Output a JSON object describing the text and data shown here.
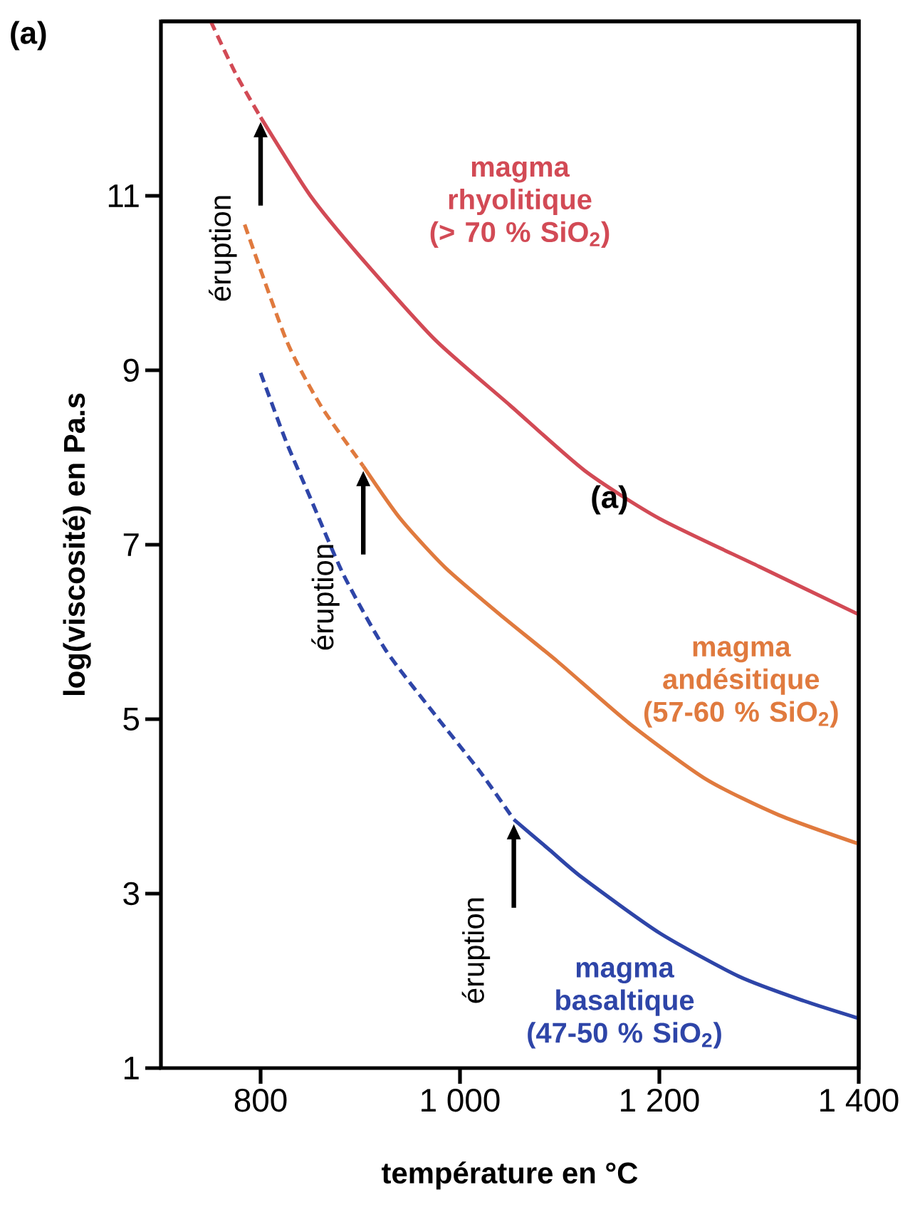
{
  "chart_data": {
    "type": "line",
    "xlabel": "température en °C",
    "ylabel": "log(viscosité) en Pa.s",
    "xlim": [
      700,
      1400
    ],
    "ylim": [
      1,
      13
    ],
    "xticks": [
      800,
      {
        "value": 1000,
        "label": "1 000"
      },
      {
        "value": 1200,
        "label": "1 200"
      },
      {
        "value": 1400,
        "label": "1 400"
      }
    ],
    "yticks": [
      1,
      3,
      5,
      7,
      9,
      11
    ],
    "grid": false,
    "marker": "none",
    "series": [
      {
        "color": "#d24a55",
        "line_style": "dashed",
        "x": [
          750,
          775,
          800
        ],
        "values": [
          13.0,
          12.4,
          11.9
        ]
      },
      {
        "name": "magma rhyolitique (> 70 % SiO$_{2}$)",
        "color": "#d24a55",
        "line_style": "solid",
        "x": [
          800,
          850,
          900,
          975,
          1050,
          1125,
          1200,
          1300,
          1400
        ],
        "values": [
          11.9,
          11.0,
          10.3,
          9.35,
          8.6,
          7.85,
          7.3,
          6.75,
          6.2
        ]
      },
      {
        "color": "#e07a3e",
        "line_style": "dashed",
        "x": [
          784,
          826,
          860,
          903
        ],
        "values": [
          10.67,
          9.34,
          8.6,
          7.9
        ]
      },
      {
        "name": "magma andésitique (57-60 % SiO$_{2}$)",
        "color": "#e07a3e",
        "line_style": "solid",
        "x": [
          903,
          940,
          985,
          1040,
          1098,
          1170,
          1247,
          1320,
          1400
        ],
        "values": [
          7.9,
          7.3,
          6.74,
          6.2,
          5.66,
          4.95,
          4.31,
          3.9,
          3.57
        ]
      },
      {
        "color": "#2e45a8",
        "line_style": "dashed",
        "x": [
          800,
          825,
          849,
          883,
          925,
          975,
          1020,
          1054
        ],
        "values": [
          8.97,
          8.2,
          7.56,
          6.66,
          5.8,
          5.05,
          4.4,
          3.85
        ]
      },
      {
        "name": "magma basaltique (47-50 % SiO$_{2}$)",
        "color": "#2e45a8",
        "line_style": "solid",
        "x": [
          1054,
          1090,
          1123,
          1200,
          1280,
          1345,
          1400
        ],
        "values": [
          3.85,
          3.5,
          3.18,
          2.55,
          2.05,
          1.77,
          1.57
        ]
      }
    ],
    "annotations": [
      "(a)",
      "(a)",
      {
        "text": "éruption",
        "x": 800,
        "y": 11.9
      },
      {
        "text": "éruption",
        "x": 903,
        "y": 7.9
      },
      {
        "text": "éruption",
        "x": 1054,
        "y": 3.85
      }
    ]
  }
}
